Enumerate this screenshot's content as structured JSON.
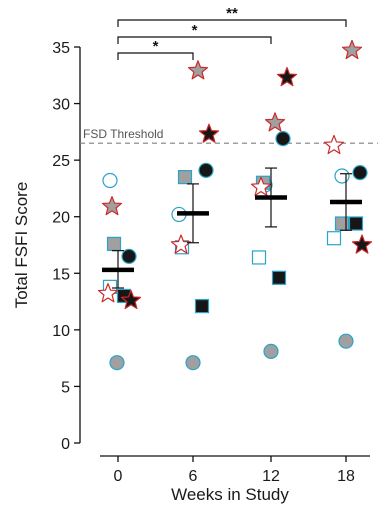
{
  "chart_data": {
    "type": "scatter",
    "xlabel": "Weeks in Study",
    "ylabel": "Total FSFI Score",
    "categories": [
      "0",
      "6",
      "12",
      "18"
    ],
    "ylim": [
      0,
      35
    ],
    "yticks": [
      "0",
      "5",
      "10",
      "15",
      "20",
      "25",
      "30",
      "35"
    ],
    "grid": false,
    "threshold": {
      "label": "FSD Threshold",
      "value": 26.5
    },
    "significance": [
      {
        "from": "0",
        "to": "6",
        "label": "*"
      },
      {
        "from": "0",
        "to": "12",
        "label": "*"
      },
      {
        "from": "0",
        "to": "18",
        "label": "**"
      }
    ],
    "summary": [
      {
        "week": "0",
        "mean": 15.3,
        "error_low": 13.7,
        "error_high": 17.0
      },
      {
        "week": "6",
        "mean": 20.3,
        "error_low": 17.7,
        "error_high": 22.9
      },
      {
        "week": "12",
        "mean": 21.7,
        "error_low": 19.1,
        "error_high": 24.3
      },
      {
        "week": "18",
        "mean": 21.3,
        "error_low": 18.8,
        "error_high": 23.8
      }
    ],
    "series": [
      {
        "marker": "circle-open",
        "values": [
          23.2,
          20.2,
          22.8,
          23.6
        ]
      },
      {
        "marker": "circle-gray",
        "values": [
          7.1,
          7.1,
          8.1,
          9.0
        ]
      },
      {
        "marker": "circle-black",
        "values": [
          16.5,
          24.1,
          26.9,
          23.9
        ]
      },
      {
        "marker": "square-open",
        "values": [
          13.8,
          17.3,
          16.4,
          18.1
        ]
      },
      {
        "marker": "square-gray",
        "values": [
          17.6,
          23.5,
          23.0,
          19.4
        ]
      },
      {
        "marker": "square-black",
        "values": [
          13.0,
          12.1,
          14.6,
          19.4
        ]
      },
      {
        "marker": "star-open",
        "values": [
          13.2,
          17.5,
          22.6,
          26.3
        ]
      },
      {
        "marker": "star-gray",
        "values": [
          20.9,
          32.9,
          28.3,
          34.7
        ]
      },
      {
        "marker": "star-black",
        "values": [
          12.6,
          27.3,
          32.3,
          17.5
        ]
      }
    ],
    "colors": {
      "circle_stroke": "#2aa3c9",
      "star_stroke": "#cc2a2a",
      "gray_fill": "#a0a0a0",
      "black_fill": "#161616",
      "threshold": "#808080"
    }
  }
}
